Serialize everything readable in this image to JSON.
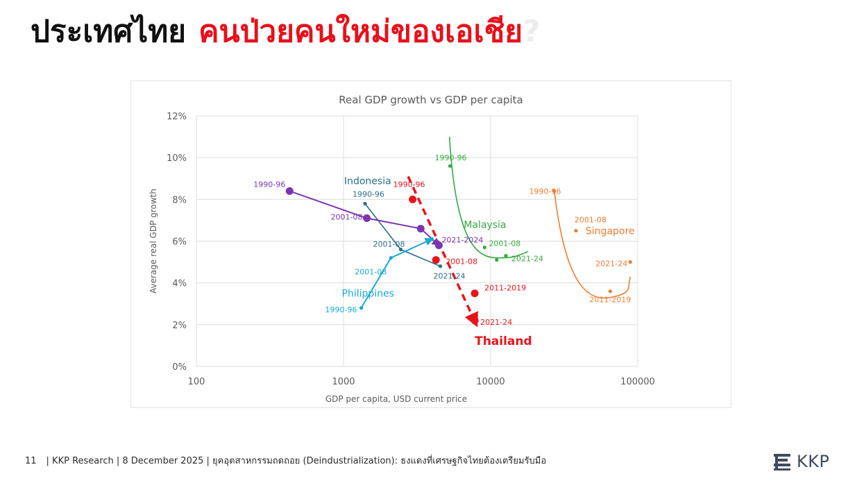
{
  "slide": {
    "title_black": "ประเทศไทย",
    "title_red": "คนป่วยคนใหม่ของเอเชีย",
    "title_ghost": "?",
    "page_number": "11",
    "footer": "| KKP Research | 8 December 2025 | ยุคอุตสาหกรรมถดถอย (Deindustrialization): ธงแดงที่เศรษฐกิจไทยต้องเตรียมรับมือ",
    "logo_text": "KKP"
  },
  "colors": {
    "title_red": "#e8101a",
    "thailand": "#e8141b",
    "indonesia": "#2b6e8a",
    "philippines": "#17a9d4",
    "malaysia": "#33a840",
    "singapore": "#ee7d2e",
    "purple": "#7b35b0",
    "grid": "#dcdcdc",
    "text": "#595959"
  },
  "chart_data": {
    "type": "scatter",
    "title": "Real GDP growth vs GDP per capita",
    "xlabel": "GDP per capita, USD current price",
    "ylabel": "Average real GDP growth",
    "x_scale": "log",
    "xlim": [
      100,
      100000
    ],
    "ylim": [
      0,
      12
    ],
    "x_ticks": [
      {
        "value": 100,
        "label": "100"
      },
      {
        "value": 1000,
        "label": "1000"
      },
      {
        "value": 10000,
        "label": "10000"
      },
      {
        "value": 100000,
        "label": "100000"
      }
    ],
    "y_ticks": [
      {
        "value": 0,
        "label": "0%"
      },
      {
        "value": 2,
        "label": "2%"
      },
      {
        "value": 4,
        "label": "4%"
      },
      {
        "value": 6,
        "label": "6%"
      },
      {
        "value": 8,
        "label": "8%"
      },
      {
        "value": 10,
        "label": "10%"
      },
      {
        "value": 12,
        "label": "12%"
      }
    ],
    "grid": true,
    "series": [
      {
        "name": "Thailand",
        "color": "#e8141b",
        "style": "dashed-arrow",
        "big_label": true,
        "points": [
          {
            "x": 2950,
            "y": 8.0,
            "label": "1990-96",
            "size": "large"
          },
          {
            "x": 4250,
            "y": 5.1,
            "label": "2001-08",
            "size": "large"
          },
          {
            "x": 7800,
            "y": 3.5,
            "label": "2011-2019",
            "size": "large"
          },
          {
            "x": 7800,
            "y": 2.2,
            "label": "2021-24",
            "size": "large"
          }
        ]
      },
      {
        "name": "Indonesia",
        "color": "#2b6e8a",
        "style": "line",
        "points": [
          {
            "x": 1400,
            "y": 7.8,
            "label": "1990-96",
            "size": "small"
          },
          {
            "x": 2450,
            "y": 5.6,
            "label": "2001-08",
            "size": "small"
          },
          {
            "x": 4550,
            "y": 4.8,
            "label": "2021-24",
            "size": "small"
          }
        ]
      },
      {
        "name": "Philippines",
        "color": "#17a9d4",
        "style": "arrow",
        "points": [
          {
            "x": 1320,
            "y": 2.8,
            "label": "1990-96",
            "size": "small"
          },
          {
            "x": 2100,
            "y": 5.2,
            "label": "2001-08",
            "size": "small"
          },
          {
            "x": 4000,
            "y": 6.1,
            "label": "",
            "size": "small"
          }
        ]
      },
      {
        "name": "",
        "color": "#7b35b0",
        "style": "arrow",
        "points": [
          {
            "x": 430,
            "y": 8.4,
            "label": "1990-96",
            "size": "large"
          },
          {
            "x": 1440,
            "y": 7.1,
            "label": "2001-08",
            "size": "large"
          },
          {
            "x": 3350,
            "y": 6.6,
            "label": "",
            "size": "large"
          },
          {
            "x": 4450,
            "y": 5.8,
            "label": "2021-2024",
            "size": "large"
          }
        ]
      },
      {
        "name": "Malaysia",
        "color": "#33a840",
        "style": "curve",
        "points": [
          {
            "x": 5300,
            "y": 9.6,
            "label": "1990-96",
            "size": "small"
          },
          {
            "x": 9100,
            "y": 5.7,
            "label": "2001-08",
            "size": "small"
          },
          {
            "x": 11000,
            "y": 5.1,
            "label": "",
            "size": "small"
          },
          {
            "x": 12700,
            "y": 5.3,
            "label": "2021-24",
            "size": "small"
          }
        ]
      },
      {
        "name": "Singapore",
        "color": "#ee7d2e",
        "style": "curve",
        "points": [
          {
            "x": 27000,
            "y": 8.4,
            "label": "1990-96",
            "size": "small"
          },
          {
            "x": 38000,
            "y": 6.5,
            "label": "2001-08",
            "size": "small"
          },
          {
            "x": 65000,
            "y": 3.6,
            "label": "2011-2019",
            "size": "small"
          },
          {
            "x": 89000,
            "y": 5.0,
            "label": "2021-24",
            "size": "small"
          }
        ]
      }
    ]
  }
}
